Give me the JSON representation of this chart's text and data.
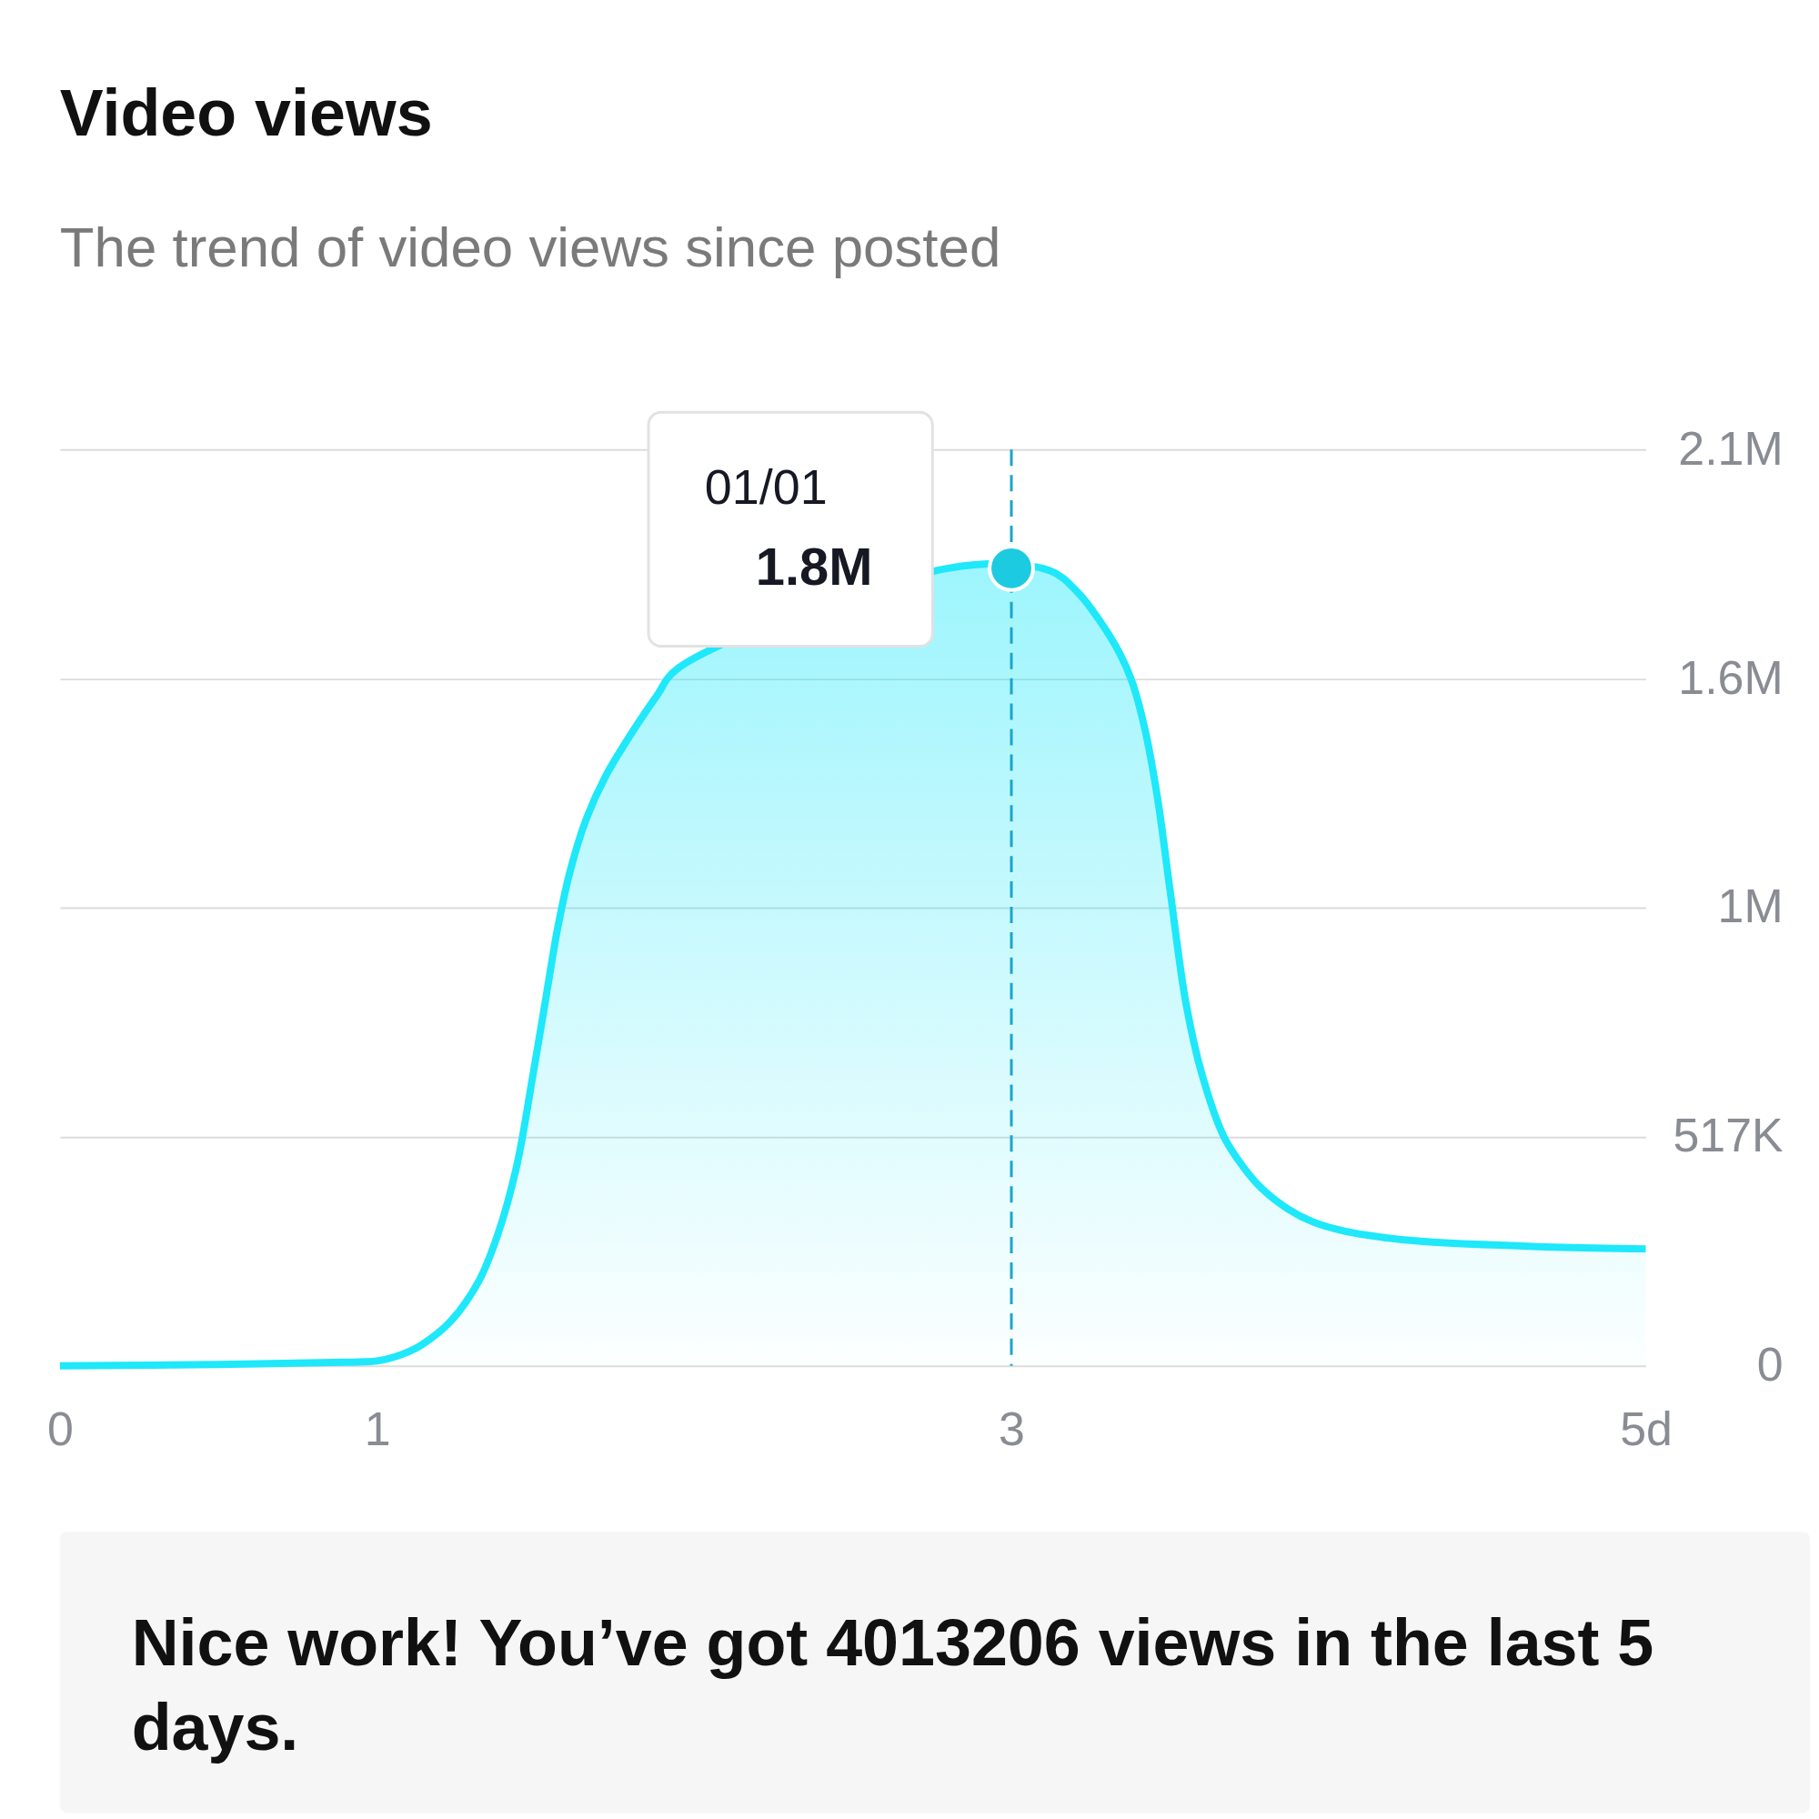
{
  "chart_data": {
    "type": "area",
    "title": "Video views",
    "subtitle": "The trend of video views since posted",
    "x": [
      0,
      0.5,
      0.9,
      0.96,
      1,
      1.05,
      1.1,
      1.14,
      1.23,
      1.32,
      1.38,
      1.44,
      1.49,
      1.53,
      1.57,
      1.61,
      1.66,
      1.72,
      1.8,
      1.88,
      1.95,
      2.8,
      3.12,
      3.21,
      3.28,
      3.34,
      3.38,
      3.42,
      3.46,
      3.5,
      3.55,
      3.6,
      3.67,
      3.73,
      3.79,
      3.87,
      3.95,
      4.05,
      4.17,
      4.29,
      4.66,
      5
    ],
    "series": [
      {
        "color": "#1ee8fa",
        "values": [
          0,
          3000,
          8000,
          9000,
          11000,
          19000,
          32000,
          47000,
          99000,
          190000,
          295000,
          450000,
          650000,
          820000,
          990000,
          1120000,
          1235000,
          1330000,
          1425000,
          1510000,
          1575000,
          1800000,
          1795000,
          1745000,
          1680000,
          1610000,
          1545000,
          1440000,
          1285000,
          1075000,
          820000,
          660000,
          517000,
          450000,
          400000,
          355000,
          325000,
          304000,
          290000,
          281000,
          269000,
          264000
        ]
      },
      {
        "type": "scatter",
        "color": "#1ccbe0",
        "marker": "circle",
        "x": [
          3
        ],
        "values": [
          1800000
        ]
      }
    ],
    "xlim": [
      0,
      5
    ],
    "xticks": [
      0,
      1,
      3,
      {
        "value": 5,
        "label": "5d"
      }
    ],
    "ylim": [
      0,
      2068000
    ],
    "yticks": [
      0,
      {
        "value": 517000,
        "label": "517K"
      },
      {
        "value": 1034000,
        "label": "1M"
      },
      {
        "value": 1551000,
        "label": "1.6M"
      },
      {
        "value": 2068000,
        "label": "2.1M"
      }
    ],
    "grid": "y",
    "ref_lines": [
      {
        "axis": "x",
        "value": 3,
        "color": "#1ba5cc",
        "line_style": "dashed"
      }
    ],
    "annotations": [
      "01/01",
      {
        "text": "1.8M",
        "x": 3,
        "y": 1800000
      },
      "Nice work! You’ve got 4013206 views in the last 5 days."
    ]
  }
}
